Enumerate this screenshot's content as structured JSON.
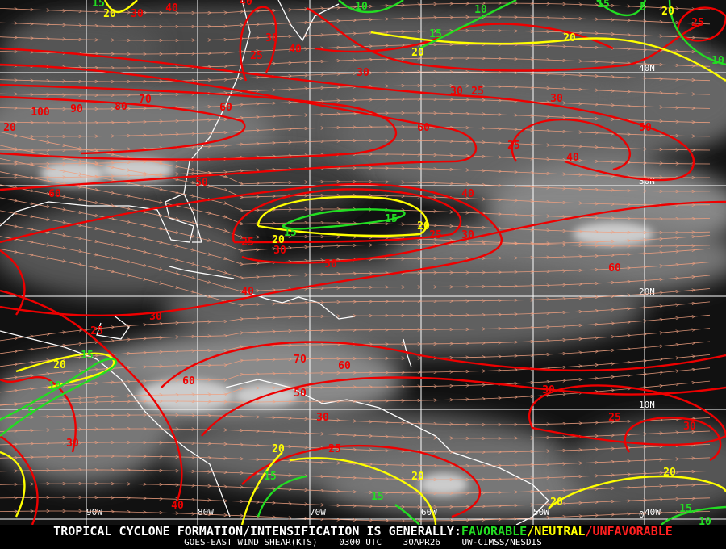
{
  "map": {
    "product": "GOES-EAST WIND SHEAR(KTS)",
    "time": "0300 UTC",
    "date": "30APR26",
    "source": "UW-CIMSS/NESDIS",
    "headline_prefix": "TROPICAL CYCLONE FORMATION/INTENSIFICATION IS GENERALLY:",
    "favorable": "FAVORABLE",
    "neutral": "NEUTRAL",
    "unfavorable": "UNFAVORABLE",
    "separator": "/",
    "longitude_labels": [
      "90W",
      "80W",
      "70W",
      "60W",
      "50W",
      "40W"
    ],
    "latitude_labels": [
      "40N",
      "30N",
      "20N",
      "10N",
      "0"
    ],
    "colors": {
      "favorable": "#22dd22",
      "neutral": "#ffff00",
      "unfavorable": "#ee0000",
      "streamlines": "#f0a080",
      "coastline": "#ffffff",
      "grid": "#ffffff"
    },
    "contour_labels": [
      "15",
      "20",
      "30",
      "40",
      "40",
      "30",
      "25",
      "40",
      "10",
      "15",
      "20",
      "10",
      "15",
      "5",
      "20",
      "25",
      "10",
      "20",
      "30",
      "30",
      "25",
      "30",
      "50",
      "25",
      "40",
      "60",
      "100",
      "90",
      "80",
      "70",
      "20",
      "60",
      "50",
      "60",
      "40",
      "15",
      "20",
      "25",
      "30",
      "15",
      "20",
      "25",
      "30",
      "50",
      "60",
      "40",
      "30",
      "25",
      "15",
      "20",
      "10",
      "70",
      "60",
      "60",
      "50",
      "30",
      "25",
      "30",
      "30",
      "30",
      "25",
      "20",
      "20",
      "15",
      "15",
      "20",
      "20",
      "15",
      "10",
      "40",
      "5"
    ]
  }
}
